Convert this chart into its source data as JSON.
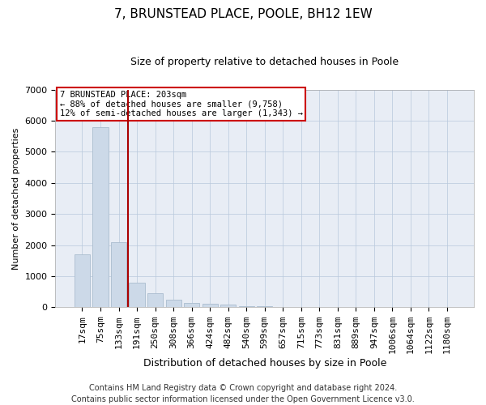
{
  "title": "7, BRUNSTEAD PLACE, POOLE, BH12 1EW",
  "subtitle": "Size of property relative to detached houses in Poole",
  "xlabel": "Distribution of detached houses by size in Poole",
  "ylabel": "Number of detached properties",
  "categories": [
    "17sqm",
    "75sqm",
    "133sqm",
    "191sqm",
    "250sqm",
    "308sqm",
    "366sqm",
    "424sqm",
    "482sqm",
    "540sqm",
    "599sqm",
    "657sqm",
    "715sqm",
    "773sqm",
    "831sqm",
    "889sqm",
    "947sqm",
    "1006sqm",
    "1064sqm",
    "1122sqm",
    "1180sqm"
  ],
  "values": [
    1700,
    5800,
    2100,
    800,
    450,
    250,
    150,
    110,
    80,
    50,
    30,
    0,
    0,
    0,
    0,
    0,
    0,
    0,
    0,
    0,
    0
  ],
  "bar_color": "#ccd9e8",
  "bar_edgecolor": "#aabcce",
  "vline_color": "#aa0000",
  "vline_x_index": 2.5,
  "annotation_text": "7 BRUNSTEAD PLACE: 203sqm\n← 88% of detached houses are smaller (9,758)\n12% of semi-detached houses are larger (1,343) →",
  "annotation_box_edgecolor": "#cc0000",
  "ylim": [
    0,
    7000
  ],
  "yticks": [
    0,
    1000,
    2000,
    3000,
    4000,
    5000,
    6000,
    7000
  ],
  "plot_bg_color": "#e8edf5",
  "fig_bg_color": "#ffffff",
  "grid_color": "#b8c8dc",
  "footer_text": "Contains HM Land Registry data © Crown copyright and database right 2024.\nContains public sector information licensed under the Open Government Licence v3.0.",
  "title_fontsize": 11,
  "subtitle_fontsize": 9,
  "ylabel_fontsize": 8,
  "xlabel_fontsize": 9,
  "tick_fontsize": 8,
  "annot_fontsize": 7.5,
  "footer_fontsize": 7
}
